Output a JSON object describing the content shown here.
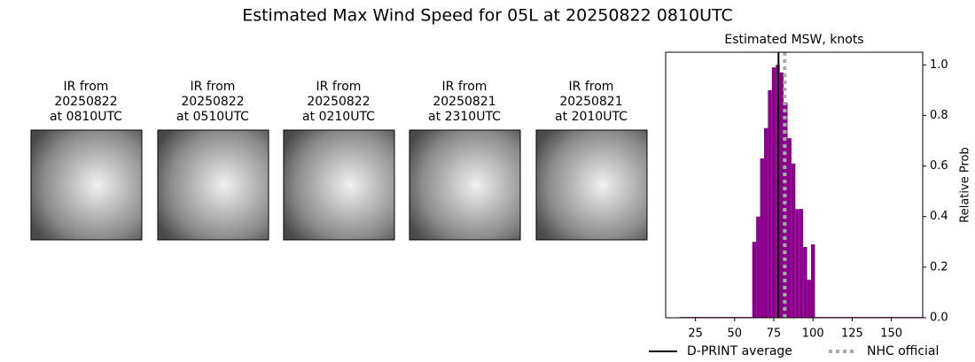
{
  "title": "Estimated Max Wind Speed for 05L at 20250822 0810UTC",
  "panels": [
    {
      "lines": [
        "IR from",
        "20250822",
        "at 0810UTC"
      ]
    },
    {
      "lines": [
        "IR from",
        "20250822",
        "at 0510UTC"
      ]
    },
    {
      "lines": [
        "IR from",
        "20250822",
        "at 0210UTC"
      ]
    },
    {
      "lines": [
        "IR from",
        "20250821",
        "at 2310UTC"
      ]
    },
    {
      "lines": [
        "IR from",
        "20250821",
        "at 2010UTC"
      ]
    }
  ],
  "chart_data": {
    "type": "histogram",
    "title": "Estimated MSW, knots",
    "ylabel": "Relative Prob",
    "color": "#8b008b",
    "bins": [
      15,
      61.25,
      63.75,
      66.25,
      68.75,
      71.25,
      73.75,
      76.25,
      78.75,
      81.25,
      83.75,
      86.25,
      88.75,
      91.25,
      93.75,
      96.25,
      98.75,
      101.25,
      170
    ],
    "values": [
      0.003,
      0.3,
      0.4,
      0.63,
      0.75,
      0.9,
      0.99,
      1.0,
      0.97,
      0.85,
      0.71,
      0.61,
      0.43,
      0.43,
      0.28,
      0.15,
      0.29,
      0.003
    ],
    "xlim": [
      6,
      170
    ],
    "xticks": [
      25,
      50,
      75,
      100,
      125,
      150
    ],
    "ylim": [
      0,
      1.05
    ],
    "yticks": [
      {
        "value": 0,
        "label": "0.0"
      },
      0.2,
      0.4,
      0.6,
      0.8,
      {
        "value": 1,
        "label": "1.0"
      }
    ],
    "lines": [
      {
        "name": "D-PRINT average",
        "color": "#000000",
        "value": 78,
        "style": "solid"
      },
      {
        "name": "NHC official",
        "color": "#aaaaaa",
        "value": 82,
        "style": "dotted"
      }
    ]
  }
}
